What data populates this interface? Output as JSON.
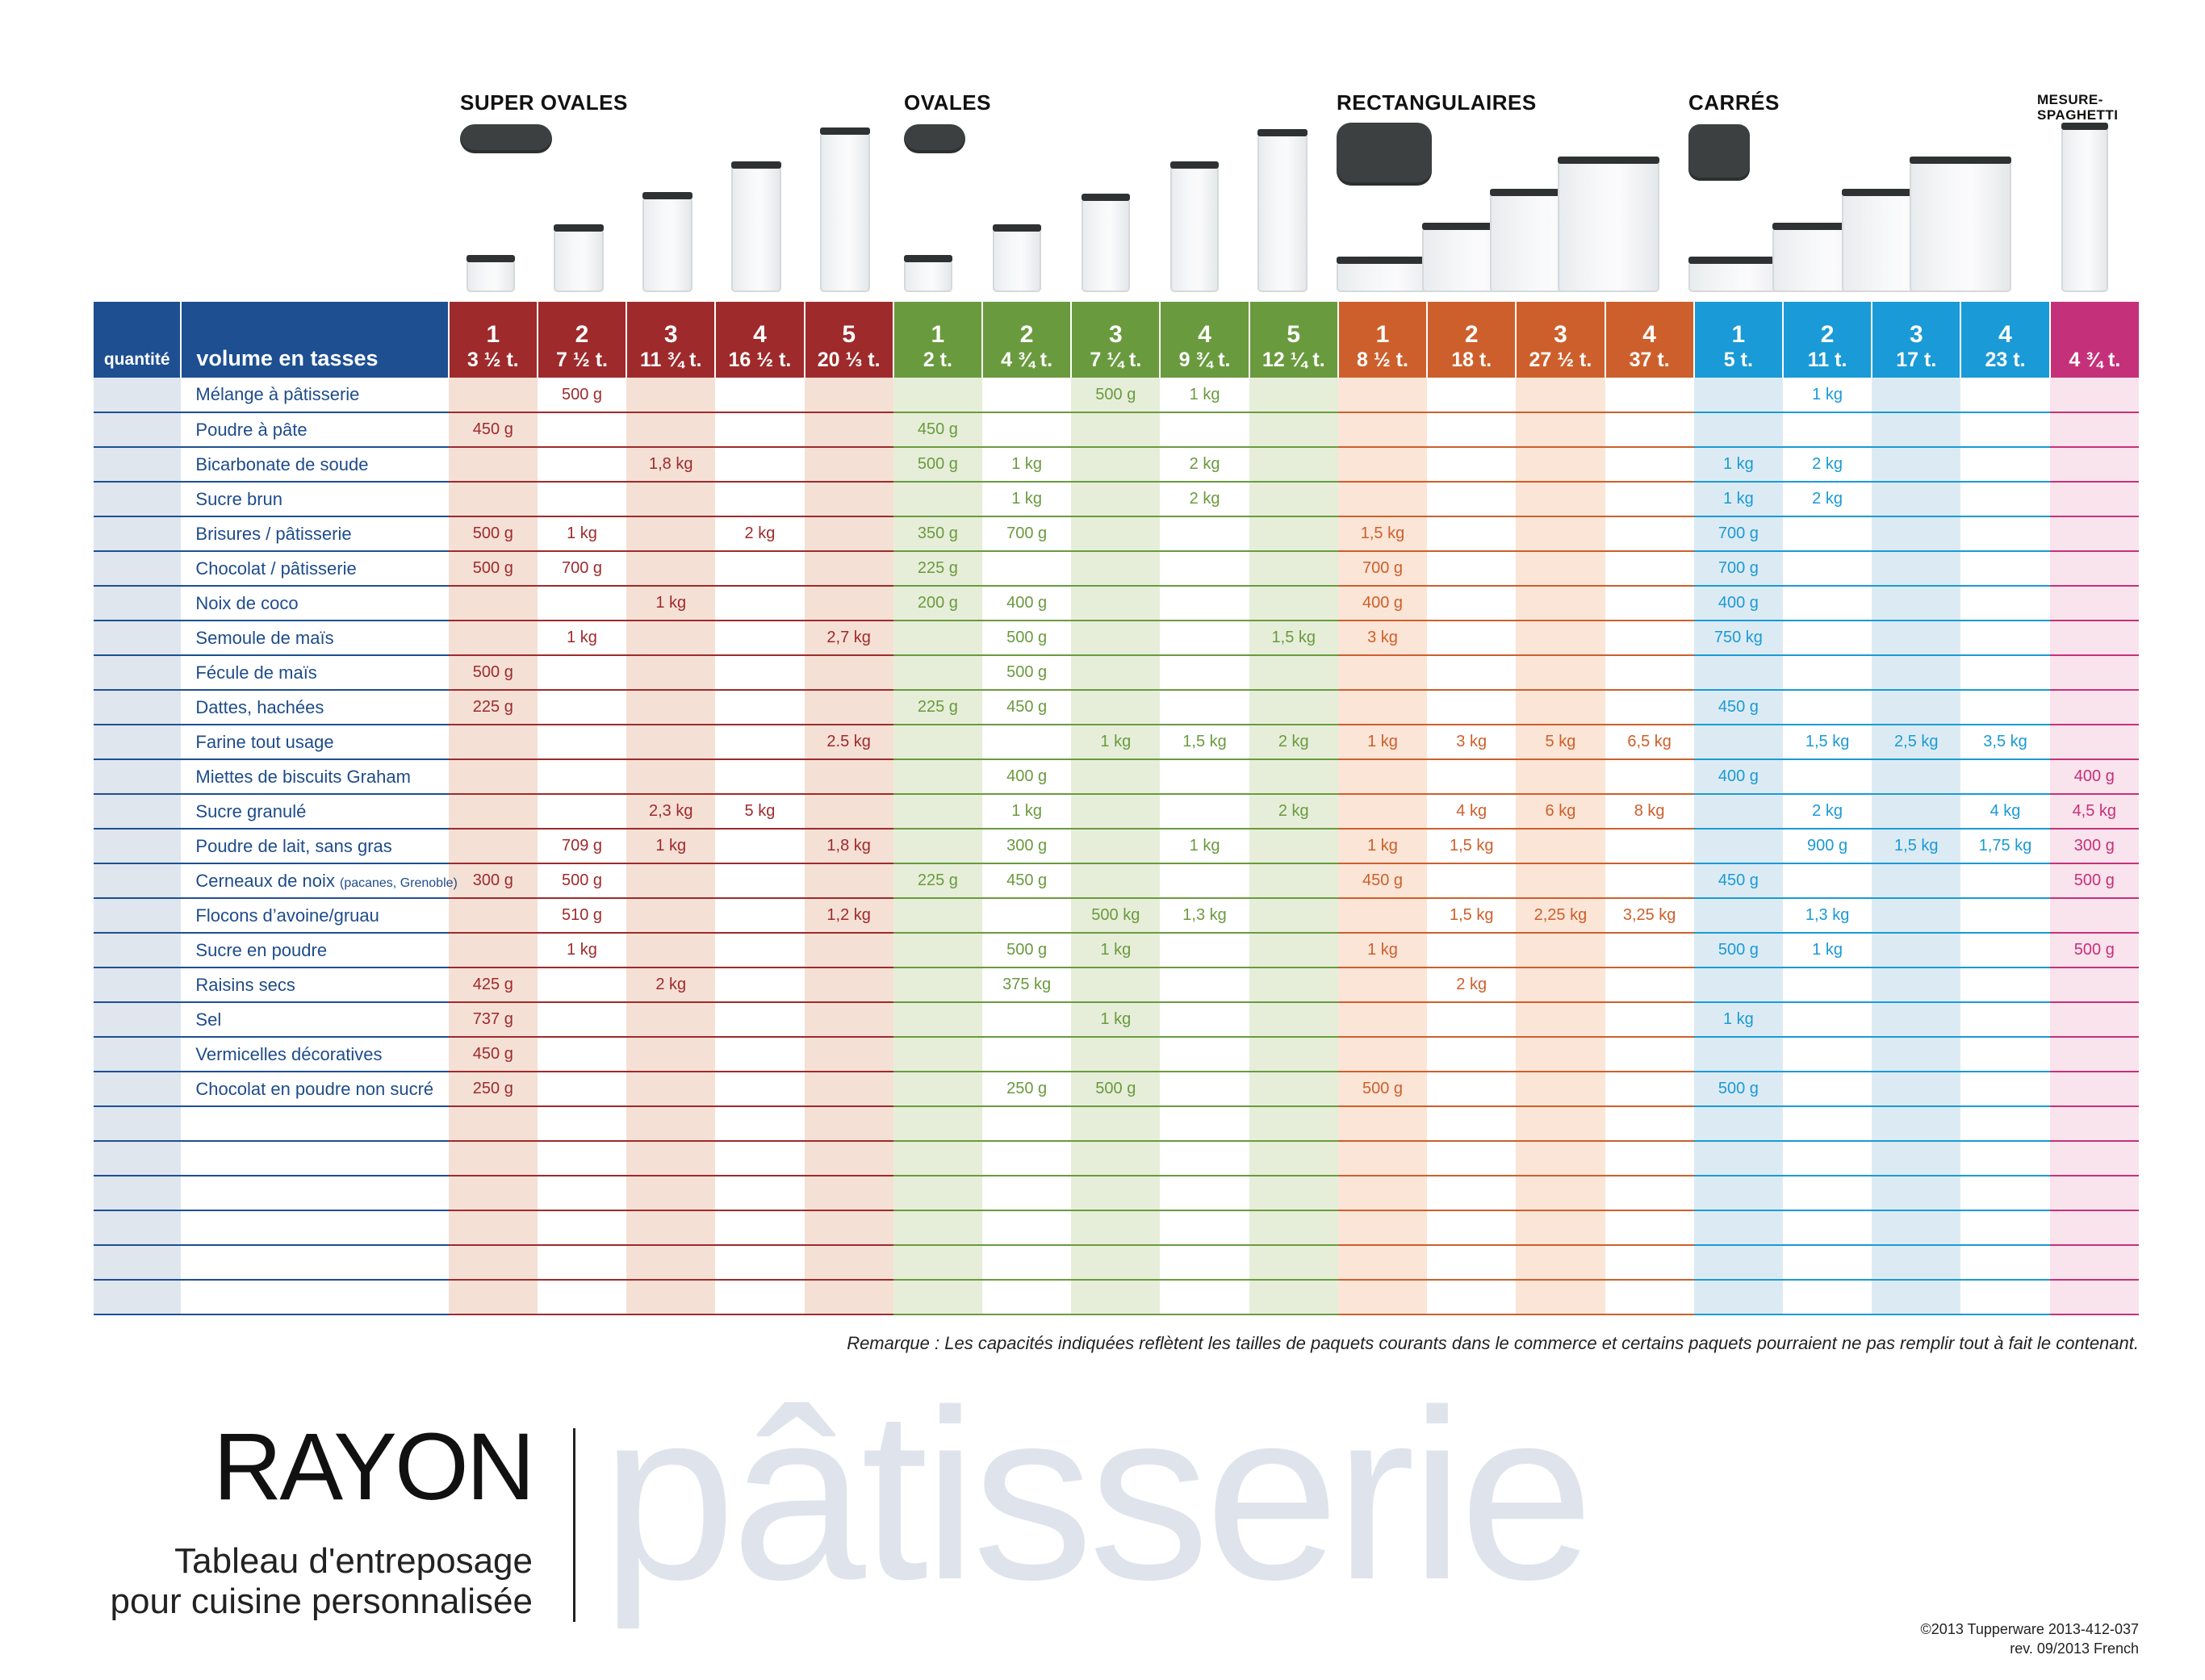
{
  "groups": [
    {
      "name": "SUPER OVALES",
      "color": "#9e2a2b",
      "tint": "#f5e0d6",
      "sizes": [
        {
          "n": "1",
          "v": "3 ½ t."
        },
        {
          "n": "2",
          "v": "7 ½ t."
        },
        {
          "n": "3",
          "v": "11 ¾ t."
        },
        {
          "n": "4",
          "v": "16 ½ t."
        },
        {
          "n": "5",
          "v": "20 ⅓ t."
        }
      ]
    },
    {
      "name": "OVALES",
      "color": "#6a9a3e",
      "tint": "#e6eed9",
      "sizes": [
        {
          "n": "1",
          "v": "2 t."
        },
        {
          "n": "2",
          "v": "4 ¾ t."
        },
        {
          "n": "3",
          "v": "7 ¼ t."
        },
        {
          "n": "4",
          "v": "9 ¾ t."
        },
        {
          "n": "5",
          "v": "12 ¼ t."
        }
      ]
    },
    {
      "name": "RECTANGULAIRES",
      "color": "#cd5f2c",
      "tint": "#fbe5d6",
      "sizes": [
        {
          "n": "1",
          "v": "8 ½ t."
        },
        {
          "n": "2",
          "v": "18 t."
        },
        {
          "n": "3",
          "v": "27 ½ t."
        },
        {
          "n": "4",
          "v": "37 t."
        }
      ]
    },
    {
      "name": "CARRÉS",
      "color": "#1a9ad6",
      "tint": "#dcebf3",
      "sizes": [
        {
          "n": "1",
          "v": "5 t."
        },
        {
          "n": "2",
          "v": "11 t."
        },
        {
          "n": "3",
          "v": "17 t."
        },
        {
          "n": "4",
          "v": "23 t."
        }
      ]
    },
    {
      "name": "MESURE-SPAGHETTI",
      "color": "#c4317a",
      "tint": "#f9e3ec",
      "sizes": [
        {
          "n": "",
          "v": "4 ¾ t."
        }
      ]
    }
  ],
  "header": {
    "quantity_label": "quantité",
    "volume_label": "volume en tasses",
    "header_blue": "#1d4f91"
  },
  "rows": [
    {
      "label": "Mélange à pâtisserie",
      "cells": [
        "",
        "500 g",
        "",
        "",
        "",
        "",
        "",
        "500 g",
        "1 kg",
        "",
        "",
        "",
        "",
        "",
        "",
        "1 kg",
        "",
        "",
        ""
      ]
    },
    {
      "label": "Poudre à pâte",
      "cells": [
        "450 g",
        "",
        "",
        "",
        "",
        "450 g",
        "",
        "",
        "",
        "",
        "",
        "",
        "",
        "",
        "",
        "",
        "",
        "",
        ""
      ]
    },
    {
      "label": "Bicarbonate de soude",
      "cells": [
        "",
        "",
        "1,8 kg",
        "",
        "",
        "500 g",
        "1 kg",
        "",
        "2 kg",
        "",
        "",
        "",
        "",
        "",
        "1 kg",
        "2 kg",
        "",
        "",
        ""
      ]
    },
    {
      "label": "Sucre brun",
      "cells": [
        "",
        "",
        "",
        "",
        "",
        "",
        "1 kg",
        "",
        "2 kg",
        "",
        "",
        "",
        "",
        "",
        "1 kg",
        "2 kg",
        "",
        "",
        ""
      ]
    },
    {
      "label": "Brisures / pâtisserie",
      "cells": [
        "500 g",
        "1 kg",
        "",
        "2 kg",
        "",
        "350 g",
        "700 g",
        "",
        "",
        "",
        "1,5 kg",
        "",
        "",
        "",
        "700 g",
        "",
        "",
        "",
        ""
      ]
    },
    {
      "label": "Chocolat / pâtisserie",
      "cells": [
        "500 g",
        "700 g",
        "",
        "",
        "",
        "225 g",
        "",
        "",
        "",
        "",
        "700 g",
        "",
        "",
        "",
        "700 g",
        "",
        "",
        "",
        ""
      ]
    },
    {
      "label": "Noix de coco",
      "cells": [
        "",
        "",
        "1 kg",
        "",
        "",
        "200 g",
        "400 g",
        "",
        "",
        "",
        "400 g",
        "",
        "",
        "",
        "400 g",
        "",
        "",
        "",
        ""
      ]
    },
    {
      "label": "Semoule de maïs",
      "cells": [
        "",
        "1 kg",
        "",
        "",
        "2,7 kg",
        "",
        "500 g",
        "",
        "",
        "1,5 kg",
        "3 kg",
        "",
        "",
        "",
        "750 kg",
        "",
        "",
        "",
        ""
      ]
    },
    {
      "label": "Fécule de maïs",
      "cells": [
        "500 g",
        "",
        "",
        "",
        "",
        "",
        "500 g",
        "",
        "",
        "",
        "",
        "",
        "",
        "",
        "",
        "",
        "",
        "",
        ""
      ]
    },
    {
      "label": "Dattes, hachées",
      "cells": [
        "225 g",
        "",
        "",
        "",
        "",
        "225 g",
        "450 g",
        "",
        "",
        "",
        "",
        "",
        "",
        "",
        "450 g",
        "",
        "",
        "",
        ""
      ]
    },
    {
      "label": "Farine tout usage",
      "cells": [
        "",
        "",
        "",
        "",
        "2.5 kg",
        "",
        "",
        "1 kg",
        "1,5 kg",
        "2 kg",
        "1 kg",
        "3 kg",
        "5 kg",
        "6,5 kg",
        "",
        "1,5 kg",
        "2,5 kg",
        "3,5 kg",
        ""
      ]
    },
    {
      "label": "Miettes de biscuits Graham",
      "cells": [
        "",
        "",
        "",
        "",
        "",
        "",
        "400 g",
        "",
        "",
        "",
        "",
        "",
        "",
        "",
        "400 g",
        "",
        "",
        "",
        "400 g"
      ]
    },
    {
      "label": "Sucre granulé",
      "cells": [
        "",
        "",
        "2,3 kg",
        "5 kg",
        "",
        "",
        "1 kg",
        "",
        "",
        "2 kg",
        "",
        "4 kg",
        "6 kg",
        "8 kg",
        "",
        "2 kg",
        "",
        "4 kg",
        "4,5 kg"
      ]
    },
    {
      "label": "Poudre de lait, sans gras",
      "cells": [
        "",
        "709 g",
        "1 kg",
        "",
        "1,8 kg",
        "",
        "300 g",
        "",
        "1 kg",
        "",
        "1 kg",
        "1,5 kg",
        "",
        "",
        "",
        "900 g",
        "1,5 kg",
        "1,75 kg",
        "300 g"
      ]
    },
    {
      "label": "Cerneaux de noix",
      "label_small": "(pacanes, Grenoble)",
      "cells": [
        "300 g",
        "500 g",
        "",
        "",
        "",
        "225 g",
        "450 g",
        "",
        "",
        "",
        "450 g",
        "",
        "",
        "",
        "450 g",
        "",
        "",
        "",
        "500 g"
      ]
    },
    {
      "label": "Flocons d’avoine/gruau",
      "cells": [
        "",
        "510 g",
        "",
        "",
        "1,2 kg",
        "",
        "",
        "500 kg",
        "1,3 kg",
        "",
        "",
        "1,5 kg",
        "2,25 kg",
        "3,25 kg",
        "",
        "1,3 kg",
        "",
        "",
        ""
      ]
    },
    {
      "label": "Sucre en poudre",
      "cells": [
        "",
        "1 kg",
        "",
        "",
        "",
        "",
        "500 g",
        "1 kg",
        "",
        "",
        "1 kg",
        "",
        "",
        "",
        "500 g",
        "1 kg",
        "",
        "",
        "500 g"
      ]
    },
    {
      "label": "Raisins secs",
      "cells": [
        "425 g",
        "",
        "2 kg",
        "",
        "",
        "",
        "375 kg",
        "",
        "",
        "",
        "",
        "2 kg",
        "",
        "",
        "",
        "",
        "",
        "",
        ""
      ]
    },
    {
      "label": "Sel",
      "cells": [
        "737 g",
        "",
        "",
        "",
        "",
        "",
        "",
        "1 kg",
        "",
        "",
        "",
        "",
        "",
        "",
        "1 kg",
        "",
        "",
        "",
        ""
      ]
    },
    {
      "label": "Vermicelles décoratives",
      "cells": [
        "450 g",
        "",
        "",
        "",
        "",
        "",
        "",
        "",
        "",
        "",
        "",
        "",
        "",
        "",
        "",
        "",
        "",
        "",
        ""
      ]
    },
    {
      "label": "Chocolat en poudre non sucré",
      "cells": [
        "250 g",
        "",
        "",
        "",
        "",
        "",
        "250 g",
        "500 g",
        "",
        "",
        "500 g",
        "",
        "",
        "",
        "500 g",
        "",
        "",
        "",
        ""
      ]
    },
    {
      "label": "",
      "cells": [
        "",
        "",
        "",
        "",
        "",
        "",
        "",
        "",
        "",
        "",
        "",
        "",
        "",
        "",
        "",
        "",
        "",
        "",
        ""
      ]
    },
    {
      "label": "",
      "cells": [
        "",
        "",
        "",
        "",
        "",
        "",
        "",
        "",
        "",
        "",
        "",
        "",
        "",
        "",
        "",
        "",
        "",
        "",
        ""
      ]
    },
    {
      "label": "",
      "cells": [
        "",
        "",
        "",
        "",
        "",
        "",
        "",
        "",
        "",
        "",
        "",
        "",
        "",
        "",
        "",
        "",
        "",
        "",
        ""
      ]
    },
    {
      "label": "",
      "cells": [
        "",
        "",
        "",
        "",
        "",
        "",
        "",
        "",
        "",
        "",
        "",
        "",
        "",
        "",
        "",
        "",
        "",
        "",
        ""
      ]
    },
    {
      "label": "",
      "cells": [
        "",
        "",
        "",
        "",
        "",
        "",
        "",
        "",
        "",
        "",
        "",
        "",
        "",
        "",
        "",
        "",
        "",
        "",
        ""
      ]
    },
    {
      "label": "",
      "cells": [
        "",
        "",
        "",
        "",
        "",
        "",
        "",
        "",
        "",
        "",
        "",
        "",
        "",
        "",
        "",
        "",
        "",
        "",
        ""
      ]
    }
  ],
  "note": "Remarque : Les capacités indiquées reflètent les tailles de paquets courants dans le commerce et certains paquets pourraient ne pas remplir tout à fait le contenant.",
  "title": {
    "rayon": "RAYON",
    "subtitle_line1": "Tableau d'entreposage",
    "subtitle_line2": "pour cuisine personnalisée",
    "big_word": "pâtisserie"
  },
  "copyright": {
    "line1": "©2013 Tupperware  2013-412-037",
    "line2": "rev. 09/2013   French"
  }
}
